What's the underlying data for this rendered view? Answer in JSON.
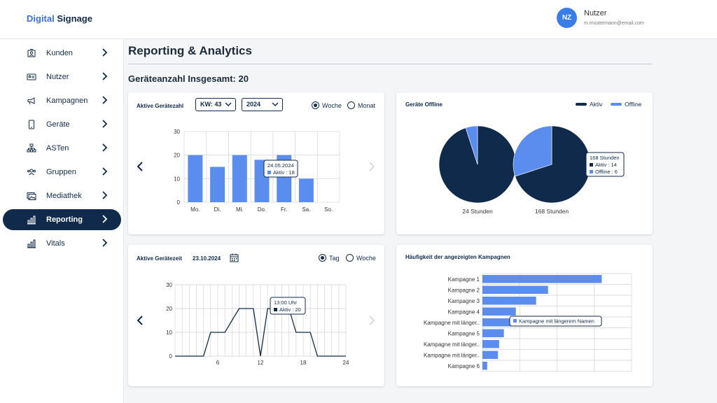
{
  "app": {
    "logo_part1": "Digital",
    "logo_part2": "Signage"
  },
  "user": {
    "initials": "NZ",
    "name": "Nutzer",
    "email": "m.mustermann@email.com"
  },
  "sidebar": {
    "items": [
      {
        "label": "Kunden",
        "icon": "customers-icon"
      },
      {
        "label": "Nutzer",
        "icon": "user-card-icon"
      },
      {
        "label": "Kampagnen",
        "icon": "megaphone-icon"
      },
      {
        "label": "Geräte",
        "icon": "device-icon"
      },
      {
        "label": "ASTen",
        "icon": "hierarchy-icon"
      },
      {
        "label": "Gruppen",
        "icon": "group-icon"
      },
      {
        "label": "Mediathek",
        "icon": "media-icon"
      },
      {
        "label": "Reporting",
        "icon": "bar-chart-icon",
        "active": true
      },
      {
        "label": "Vitals",
        "icon": "bar-chart-icon"
      }
    ]
  },
  "main": {
    "title": "Reporting & Analytics",
    "device_total": "Geräteanzahl Insgesamt: 20"
  },
  "active_devices": {
    "title": "Aktive Gerätezahl",
    "week_select": "KW: 43",
    "year_select": "2024",
    "radio_week": "Woche",
    "radio_month": "Monat",
    "selected": "Woche",
    "tooltip_date": "24.05.2024",
    "tooltip_value": "Aktiv : 18"
  },
  "offline_devices": {
    "title": "Geräte Offline",
    "legend_active": "Aktiv",
    "legend_offline": "Offline",
    "tooltip_title": "168 Stunden",
    "tooltip_active": "Aktiv     : 14",
    "tooltip_offline": "Offline : 6"
  },
  "active_time": {
    "title": "Aktive Gerätezeit",
    "date": "23.10.2024",
    "radio_day": "Tag",
    "radio_week": "Woche",
    "selected": "Tag",
    "tooltip_time": "13:00 Uhr",
    "tooltip_value": "Aktiv : 20"
  },
  "campaign_freq": {
    "title": "Häufigkeit der angezeigten Kampagnen",
    "tooltip": "Kampagne mit längerem Namen"
  },
  "colors": {
    "navy": "#0f2a4a",
    "blue": "#5b8def",
    "accent": "#3b7de8"
  },
  "chart_data": [
    {
      "type": "bar",
      "categories": [
        "Mo.",
        "Di.",
        "Mi.",
        "Do.",
        "Fr.",
        "Sa.",
        "So."
      ],
      "values": [
        20,
        15,
        20,
        18,
        20,
        10,
        0
      ],
      "ylim": [
        0,
        30
      ],
      "yticks": [
        "0",
        "10",
        "20",
        "30"
      ],
      "grid": true
    },
    {
      "type": "pie",
      "categories": [
        "Aktiv",
        "Offline"
      ],
      "pies": [
        {
          "label": "24 Stunden",
          "values": [
            19,
            1
          ]
        },
        {
          "label": "168 Stunden",
          "values": [
            14,
            6
          ]
        }
      ]
    },
    {
      "type": "line",
      "x": [
        0,
        1,
        2,
        3,
        4,
        5,
        6,
        7,
        8,
        9,
        10,
        11,
        12,
        13,
        14,
        15,
        16,
        17,
        18,
        19,
        20,
        21,
        22,
        23,
        24
      ],
      "values": [
        0,
        0,
        0,
        0,
        0,
        10,
        10,
        10,
        15,
        20,
        20,
        20,
        0,
        20,
        20,
        20,
        20,
        10,
        10,
        10,
        0,
        0,
        0,
        0,
        0
      ],
      "ylim": [
        0,
        30
      ],
      "xlim": [
        0,
        24
      ],
      "yticks": [
        "0",
        "10",
        "20",
        "30"
      ],
      "xticks": [
        "6",
        "12",
        "18",
        "24"
      ],
      "grid": true
    },
    {
      "type": "bar",
      "orientation": "horizontal",
      "categories": [
        "Kampagne 1",
        "Kampagne 2",
        "Kampagne 3",
        "Kampagne 4",
        "Kampagne mit länger..",
        "Kampagne 5",
        "Kampagne mit länger..",
        "Kampagne mit länger..",
        "Kampagne 6"
      ],
      "values": [
        100,
        55,
        45,
        28,
        24,
        18,
        14,
        13,
        4
      ],
      "xlim": [
        0,
        125
      ],
      "grid": true
    }
  ]
}
